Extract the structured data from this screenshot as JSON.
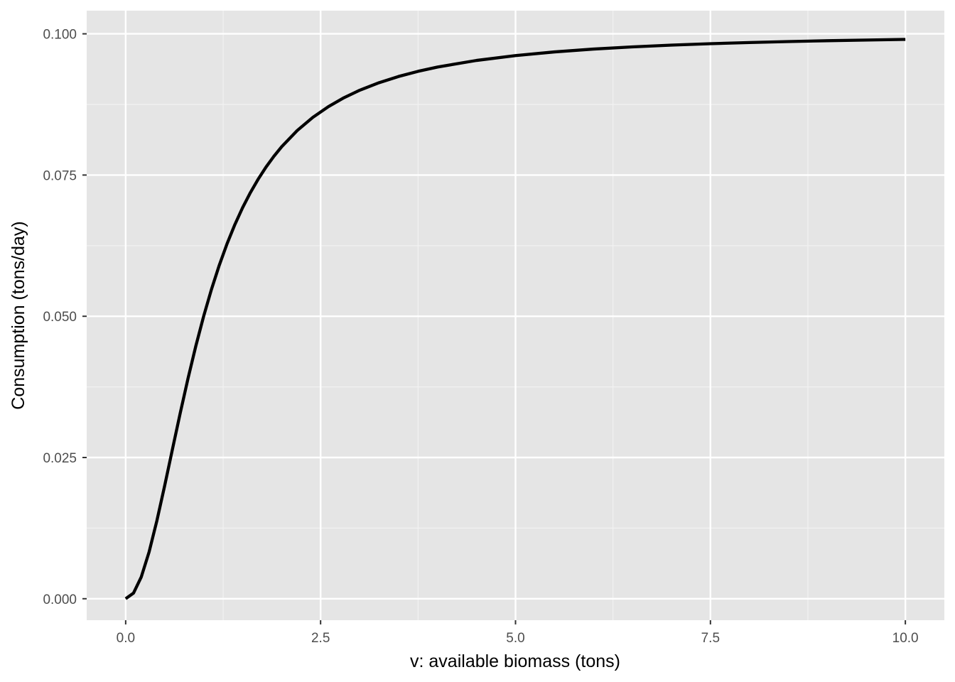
{
  "chart_data": {
    "type": "line",
    "title": "",
    "xlabel": "v: available biomass (tons)",
    "ylabel": "Consumption (tons/day)",
    "xlim": [
      -0.5,
      10.5
    ],
    "ylim": [
      -0.0038,
      0.1041
    ],
    "x_ticks": [
      0.0,
      2.5,
      5.0,
      7.5,
      10.0
    ],
    "x_tick_labels": [
      "0.0",
      "2.5",
      "5.0",
      "7.5",
      "10.0"
    ],
    "y_ticks": [
      0.0,
      0.025,
      0.05,
      0.075,
      0.1
    ],
    "y_tick_labels": [
      "0.000",
      "0.025",
      "0.050",
      "0.075",
      "0.100"
    ],
    "grid": true,
    "legend": "none",
    "series": [
      {
        "color": "#000000",
        "x": [
          0.0,
          0.1,
          0.2,
          0.3,
          0.4,
          0.5,
          0.6,
          0.7,
          0.8,
          0.9,
          1.0,
          1.1,
          1.2,
          1.3,
          1.4,
          1.5,
          1.6,
          1.7,
          1.8,
          1.9,
          2.0,
          2.2,
          2.4,
          2.6,
          2.8,
          3.0,
          3.25,
          3.5,
          3.75,
          4.0,
          4.5,
          5.0,
          5.5,
          6.0,
          6.5,
          7.0,
          7.5,
          8.0,
          8.5,
          9.0,
          9.5,
          10.0
        ],
        "y": [
          0.0,
          0.00099,
          0.00385,
          0.00826,
          0.01379,
          0.02,
          0.02647,
          0.03288,
          0.03902,
          0.04475,
          0.05,
          0.05475,
          0.05902,
          0.06283,
          0.06622,
          0.06923,
          0.0719,
          0.07428,
          0.07641,
          0.0783,
          0.08,
          0.08288,
          0.08521,
          0.08711,
          0.08869,
          0.09,
          0.09135,
          0.09245,
          0.09336,
          0.09412,
          0.09529,
          0.09615,
          0.0968,
          0.0973,
          0.09769,
          0.098,
          0.09825,
          0.09846,
          0.09863,
          0.09878,
          0.0989,
          0.09901
        ]
      }
    ]
  }
}
